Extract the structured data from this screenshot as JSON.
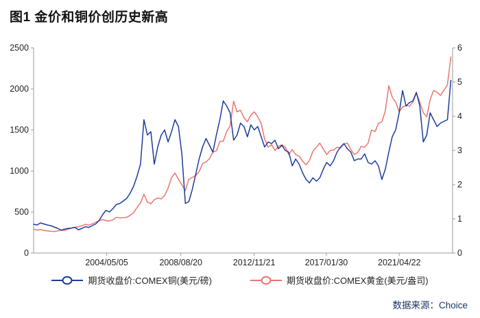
{
  "page": {
    "title": "图1  金价和铜价创历史新高",
    "source": "数据来源：Choice"
  },
  "chart_data": {
    "type": "line",
    "title": "图1 金价和铜价创历史新高",
    "grid": false,
    "legend_position": "bottom",
    "x_domain": [
      2000.1,
      2024.4
    ],
    "x_ticks": [
      {
        "x": 2004.34,
        "label": "2004/05/05"
      },
      {
        "x": 2008.64,
        "label": "2008/08/20"
      },
      {
        "x": 2012.89,
        "label": "2012/11/21"
      },
      {
        "x": 2017.08,
        "label": "2017/01/30"
      },
      {
        "x": 2021.31,
        "label": "2021/04/22"
      }
    ],
    "left_axis": {
      "range": [
        0,
        2500
      ],
      "ticks": [
        0,
        500,
        1000,
        1500,
        2000,
        2500
      ]
    },
    "right_axis": {
      "range": [
        0,
        6
      ],
      "ticks": [
        0,
        1,
        2,
        3,
        4,
        5,
        6
      ]
    },
    "x": [
      2000.1,
      2000.3,
      2000.5,
      2000.7,
      2000.9,
      2001.1,
      2001.3,
      2001.5,
      2001.7,
      2001.9,
      2002.1,
      2002.3,
      2002.5,
      2002.7,
      2002.9,
      2003.1,
      2003.3,
      2003.5,
      2003.7,
      2003.9,
      2004.1,
      2004.3,
      2004.5,
      2004.7,
      2004.9,
      2005.1,
      2005.3,
      2005.5,
      2005.7,
      2005.9,
      2006.1,
      2006.3,
      2006.5,
      2006.7,
      2006.9,
      2007.1,
      2007.3,
      2007.5,
      2007.7,
      2007.9,
      2008.1,
      2008.3,
      2008.5,
      2008.7,
      2008.9,
      2009.1,
      2009.3,
      2009.5,
      2009.7,
      2009.9,
      2010.1,
      2010.3,
      2010.5,
      2010.7,
      2010.9,
      2011.1,
      2011.3,
      2011.5,
      2011.7,
      2011.9,
      2012.1,
      2012.3,
      2012.5,
      2012.7,
      2012.9,
      2013.1,
      2013.3,
      2013.5,
      2013.7,
      2013.9,
      2014.1,
      2014.3,
      2014.5,
      2014.7,
      2014.9,
      2015.1,
      2015.3,
      2015.5,
      2015.7,
      2015.9,
      2016.1,
      2016.3,
      2016.5,
      2016.7,
      2016.9,
      2017.1,
      2017.3,
      2017.5,
      2017.7,
      2017.9,
      2018.1,
      2018.3,
      2018.5,
      2018.7,
      2018.9,
      2019.1,
      2019.3,
      2019.5,
      2019.7,
      2019.9,
      2020.1,
      2020.3,
      2020.5,
      2020.7,
      2020.9,
      2021.1,
      2021.3,
      2021.5,
      2021.7,
      2021.9,
      2022.1,
      2022.3,
      2022.5,
      2022.7,
      2022.9,
      2023.1,
      2023.3,
      2023.5,
      2023.7,
      2023.9,
      2024.1,
      2024.3
    ],
    "series": [
      {
        "name": "期货收盘价:COMEX铜(美元/磅)",
        "color": "#1b3a9e",
        "axis": "right",
        "values": [
          0.84,
          0.82,
          0.88,
          0.85,
          0.82,
          0.8,
          0.76,
          0.72,
          0.67,
          0.7,
          0.72,
          0.73,
          0.75,
          0.68,
          0.72,
          0.77,
          0.75,
          0.8,
          0.85,
          0.95,
          1.12,
          1.25,
          1.2,
          1.3,
          1.42,
          1.45,
          1.52,
          1.6,
          1.75,
          1.95,
          2.25,
          2.6,
          3.9,
          3.45,
          3.55,
          2.6,
          3.1,
          3.45,
          3.6,
          3.25,
          3.55,
          3.9,
          3.7,
          2.9,
          1.45,
          1.5,
          1.85,
          2.3,
          2.75,
          3.1,
          3.35,
          3.15,
          2.95,
          3.45,
          3.9,
          4.45,
          4.3,
          4.1,
          3.3,
          3.45,
          3.8,
          3.7,
          3.4,
          3.75,
          3.6,
          3.7,
          3.4,
          3.1,
          3.25,
          3.2,
          3.3,
          3.05,
          3.15,
          3.0,
          2.95,
          2.55,
          2.75,
          2.6,
          2.35,
          2.15,
          2.05,
          2.2,
          2.1,
          2.2,
          2.45,
          2.65,
          2.55,
          2.7,
          2.95,
          3.1,
          3.2,
          3.05,
          2.95,
          2.7,
          2.75,
          2.75,
          2.9,
          2.65,
          2.6,
          2.7,
          2.55,
          2.15,
          2.45,
          2.95,
          3.4,
          3.6,
          4.1,
          4.75,
          4.3,
          4.4,
          4.45,
          4.7,
          4.3,
          3.25,
          3.45,
          4.1,
          3.9,
          3.7,
          3.8,
          3.85,
          3.9,
          5.05
        ]
      },
      {
        "name": "期货收盘价:COMEX黄金(美元/盎司)",
        "color": "#ea756d",
        "axis": "left",
        "values": [
          290,
          280,
          285,
          275,
          270,
          265,
          262,
          270,
          278,
          276,
          290,
          305,
          315,
          320,
          332,
          350,
          340,
          355,
          375,
          395,
          408,
          395,
          390,
          405,
          435,
          428,
          430,
          435,
          460,
          490,
          555,
          610,
          715,
          620,
          600,
          650,
          670,
          660,
          700,
          790,
          920,
          975,
          900,
          830,
          760,
          900,
          920,
          945,
          990,
          1090,
          1110,
          1150,
          1230,
          1245,
          1360,
          1365,
          1480,
          1550,
          1850,
          1720,
          1740,
          1650,
          1600,
          1680,
          1720,
          1660,
          1580,
          1390,
          1290,
          1320,
          1250,
          1300,
          1320,
          1290,
          1200,
          1260,
          1200,
          1180,
          1120,
          1075,
          1130,
          1240,
          1290,
          1340,
          1270,
          1200,
          1250,
          1255,
          1290,
          1280,
          1330,
          1340,
          1260,
          1200,
          1225,
          1300,
          1290,
          1340,
          1500,
          1480,
          1580,
          1600,
          1730,
          2040,
          1900,
          1840,
          1720,
          1780,
          1800,
          1790,
          1840,
          1950,
          1840,
          1710,
          1660,
          1870,
          1980,
          1960,
          1920,
          1985,
          2050,
          2390
        ]
      }
    ]
  }
}
